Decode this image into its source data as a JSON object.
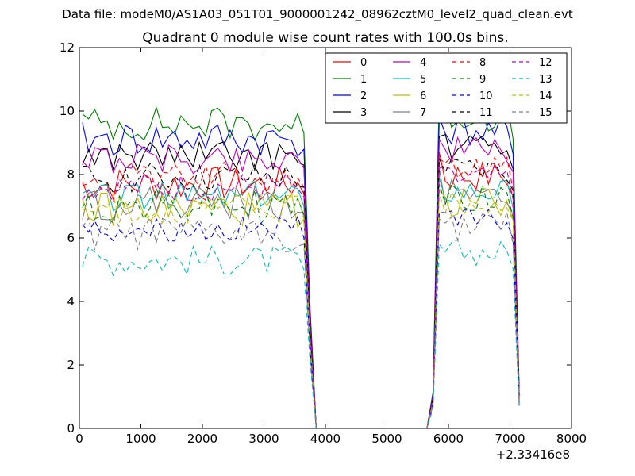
{
  "chart_data": {
    "type": "line",
    "suptitle": "Data file: modeM0/AS1A03_051T01_9000001242_08962cztM0_level2_quad_clean.evt",
    "title": "Quadrant 0 module wise count rates with 100.0s bins.",
    "xlabel": "",
    "ylabel": "",
    "xlim": [
      0,
      8000
    ],
    "ylim": [
      0,
      12
    ],
    "x_offset_label": "+2.33416e8",
    "x_ticks": [
      "0",
      "1000",
      "2000",
      "3000",
      "4000",
      "5000",
      "6000",
      "7000",
      "8000"
    ],
    "y_ticks": [
      "0",
      "2",
      "4",
      "6",
      "8",
      "10",
      "12"
    ],
    "legend_position": "top-right",
    "x": [
      50,
      150,
      250,
      350,
      450,
      550,
      650,
      750,
      850,
      950,
      1050,
      1150,
      1250,
      1350,
      1450,
      1550,
      1650,
      1750,
      1850,
      1950,
      2050,
      2150,
      2250,
      2350,
      2450,
      2550,
      2650,
      2750,
      2850,
      2950,
      3050,
      3150,
      3250,
      3350,
      3450,
      3550,
      3650,
      3750,
      3850,
      3950,
      4050,
      4150,
      4250,
      4350,
      4450,
      4550,
      4650,
      4750,
      4850,
      4950,
      5050,
      5150,
      5250,
      5350,
      5450,
      5550,
      5650,
      5750,
      5850,
      5950,
      6050,
      6150,
      6250,
      6350,
      6450,
      6550,
      6650,
      6750,
      6850,
      6950,
      7050,
      7150
    ],
    "series": [
      {
        "name": "0",
        "color": "#ff0000",
        "dash": "solid",
        "base": 7.7,
        "amp": 0.35,
        "tail": 8.3
      },
      {
        "name": "1",
        "color": "#008000",
        "dash": "solid",
        "base": 9.6,
        "amp": 0.35,
        "tail": 10.2
      },
      {
        "name": "2",
        "color": "#0000ff",
        "dash": "solid",
        "base": 9.1,
        "amp": 0.35,
        "tail": 9.4
      },
      {
        "name": "3",
        "color": "#000000",
        "dash": "solid",
        "base": 8.6,
        "amp": 0.3,
        "tail": 8.8
      },
      {
        "name": "4",
        "color": "#bf00bf",
        "dash": "solid",
        "base": 8.5,
        "amp": 0.3,
        "tail": 8.7
      },
      {
        "name": "5",
        "color": "#00bfbf",
        "dash": "solid",
        "base": 7.3,
        "amp": 0.3,
        "tail": 7.5
      },
      {
        "name": "6",
        "color": "#bfbf00",
        "dash": "solid",
        "base": 6.9,
        "amp": 0.35,
        "tail": 7.1
      },
      {
        "name": "7",
        "color": "#808080",
        "dash": "solid",
        "base": 7.1,
        "amp": 0.35,
        "tail": 7.8
      },
      {
        "name": "8",
        "color": "#ff0000",
        "dash": "dashed",
        "base": 7.9,
        "amp": 0.3,
        "tail": 8.1
      },
      {
        "name": "9",
        "color": "#008000",
        "dash": "dashed",
        "base": 7.0,
        "amp": 0.35,
        "tail": 7.3
      },
      {
        "name": "10",
        "color": "#0000ff",
        "dash": "dashed",
        "base": 6.3,
        "amp": 0.25,
        "tail": 6.4
      },
      {
        "name": "11",
        "color": "#000000",
        "dash": "dashed",
        "base": 7.9,
        "amp": 0.3,
        "tail": 8.1
      },
      {
        "name": "12",
        "color": "#bf00bf",
        "dash": "dashed",
        "base": 7.6,
        "amp": 0.3,
        "tail": 7.8
      },
      {
        "name": "13",
        "color": "#00bfbf",
        "dash": "dashed",
        "base": 5.3,
        "amp": 0.3,
        "tail": 5.4
      },
      {
        "name": "14",
        "color": "#bfbf00",
        "dash": "dashed",
        "base": 6.9,
        "amp": 0.3,
        "tail": 7.0
      },
      {
        "name": "15",
        "color": "#808080",
        "dash": "dashed",
        "base": 6.1,
        "amp": 0.35,
        "tail": 6.2
      }
    ]
  }
}
